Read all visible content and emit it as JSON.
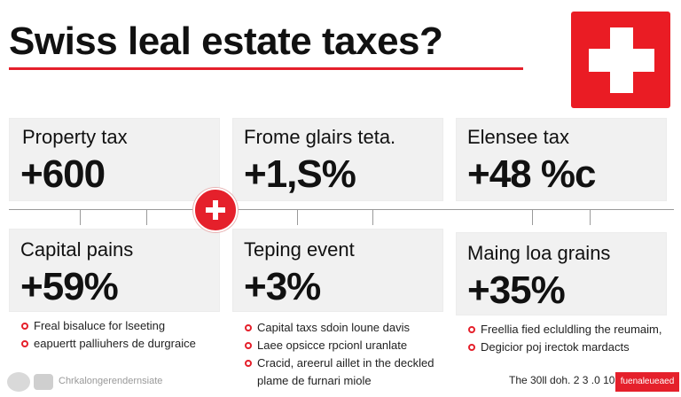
{
  "title": "Swiss leal estate taxes?",
  "colors": {
    "accent": "#e5202b",
    "card_bg": "#f1f1f1"
  },
  "icons": {
    "flag": "swiss-flag-icon",
    "connector": "swiss-cross-icon",
    "bullet": "bullet-dot-icon"
  },
  "cards": [
    {
      "label": "Property tax",
      "value": "+600"
    },
    {
      "label": "Frome glairs teta.",
      "value": "+1,S%"
    },
    {
      "label": "Elensee tax",
      "value": "+48 %c"
    },
    {
      "label": "Capital pains",
      "value": "+59%",
      "bullets": [
        "Freal bisaluce for lseeting",
        "eapuertt palliuhers de durgraice"
      ]
    },
    {
      "label": "Teping event",
      "value": "+3%",
      "bullets": [
        "Capital taxs sdoin loune davis",
        "Laee opsicce rpcionl uranlate",
        "Cracid, areerul aillet in the deckled plame de furnari miole"
      ]
    },
    {
      "label": "Maing loa grains",
      "value": "+35%",
      "bullets": [
        "Freellia fied ecluldling the reumaim,",
        "Degicior poj irectok mardacts"
      ]
    }
  ],
  "footer": {
    "left_text": "Chrkalongerendernsiate",
    "right_text": "The 30ll doh. 2 3 .0 10.3",
    "badge": "fuenaleueaed"
  }
}
